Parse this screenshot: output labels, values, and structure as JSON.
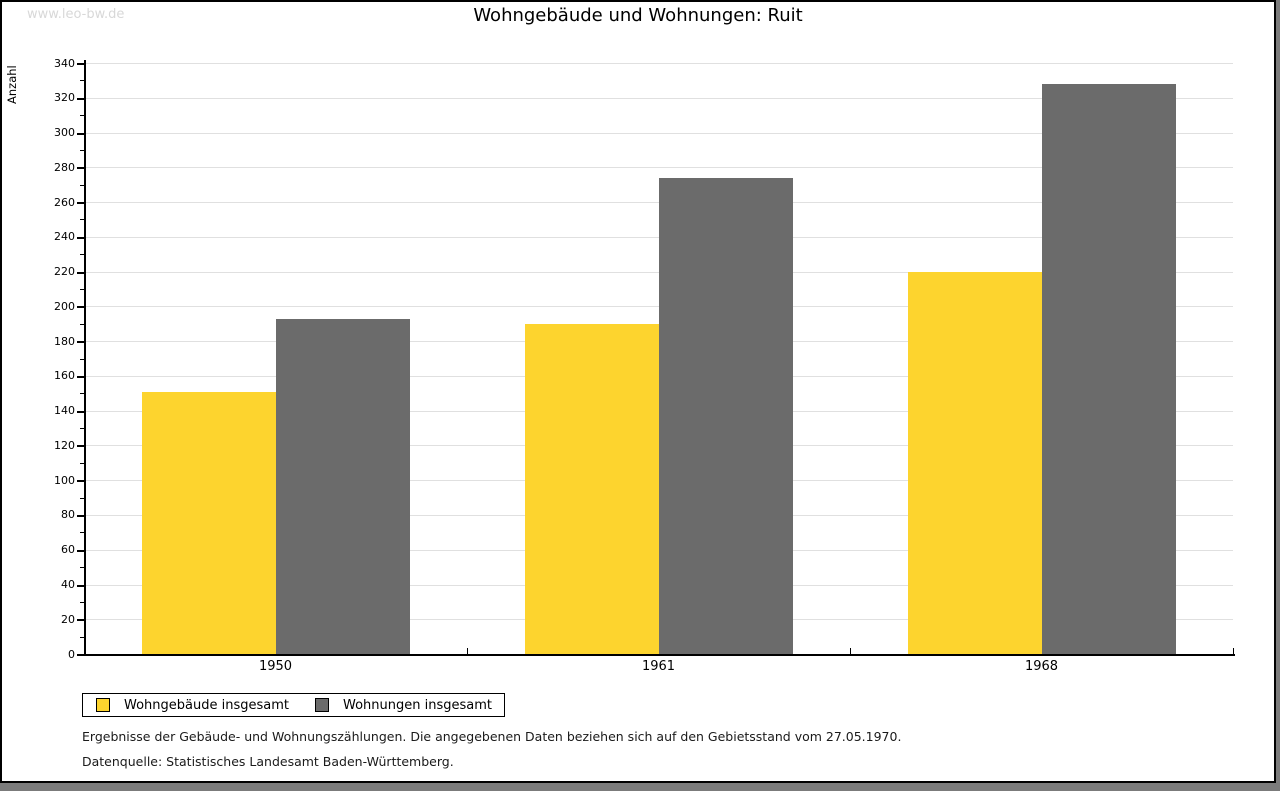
{
  "watermark": "www.leo-bw.de",
  "title": "Wohngebäude und Wohnungen: Ruit",
  "chart_data": {
    "type": "bar",
    "title": "Wohngebäude und Wohnungen: Ruit",
    "categories": [
      "1950",
      "1961",
      "1968"
    ],
    "series": [
      {
        "name": "Wohngebäude insgesamt",
        "color": "#fdd42e",
        "values": [
          151,
          190,
          220
        ]
      },
      {
        "name": "Wohnungen insgesamt",
        "color": "#6b6b6b",
        "values": [
          193,
          274,
          328
        ]
      }
    ],
    "xlabel": "",
    "ylabel": "Anzahl",
    "ylim": [
      0,
      340
    ],
    "ytick_major": 20,
    "ytick_minor": 10,
    "grid": true,
    "gridline_color": "#e0e0e0",
    "legend_position": "bottom-left"
  },
  "legend": {
    "items": [
      {
        "label": "Wohngebäude insgesamt",
        "color": "#fdd42e"
      },
      {
        "label": "Wohnungen insgesamt",
        "color": "#6b6b6b"
      }
    ]
  },
  "footnotes": {
    "line1": "Ergebnisse der Gebäude- und Wohnungszählungen. Die angegebenen Daten beziehen sich auf den Gebietsstand vom 27.05.1970.",
    "line2": "Datenquelle: Statistisches Landesamt Baden-Württemberg."
  }
}
